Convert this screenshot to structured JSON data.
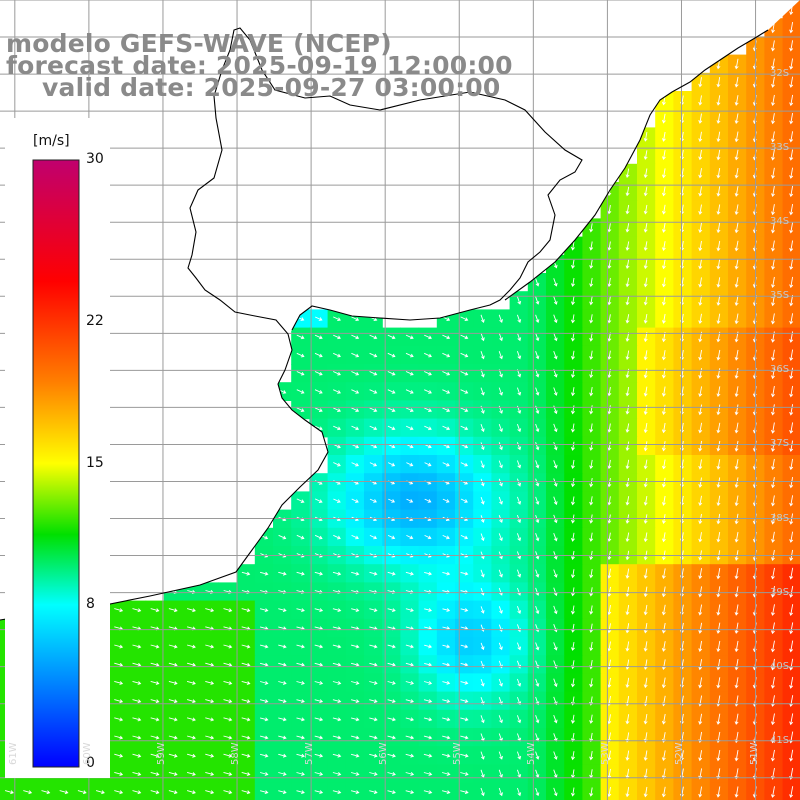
{
  "title": {
    "line1": "modelo GEFS-WAVE (NCEP)",
    "line2": "forecast date: 2025-09-19 12:00:00",
    "line3": "valid date: 2025-09-27 03:00:00"
  },
  "colorbar": {
    "unit": "[m/s]",
    "ticks": [
      "30",
      "22",
      "15",
      "8",
      "0"
    ],
    "tick_values": [
      30,
      22,
      15,
      8,
      0
    ],
    "range": [
      0,
      30
    ],
    "colors": [
      "#0000ff",
      "#00ffff",
      "#00e000",
      "#ffff00",
      "#ff8000",
      "#ff0000",
      "#c0006e"
    ]
  },
  "axes": {
    "lat_labels": [
      "32S",
      "33S",
      "34S",
      "35S",
      "36S",
      "37S",
      "38S",
      "39S",
      "40S",
      "41S"
    ],
    "lat_values": [
      -32,
      -33,
      -34,
      -35,
      -36,
      -37,
      -38,
      -39,
      -40,
      -41
    ],
    "lon_labels": [
      "61W",
      "60W",
      "59W",
      "58W",
      "57W",
      "56W",
      "55W",
      "54W",
      "53W",
      "52W",
      "51W"
    ],
    "lon_values": [
      -61,
      -60,
      -59,
      -58,
      -57,
      -56,
      -55,
      -54,
      -53,
      -52,
      -51
    ],
    "lat_range": [
      -41.8,
      -31.0
    ],
    "lon_range": [
      -61.2,
      -50.4
    ]
  },
  "colors": {
    "land": "#ffffff",
    "coastline": "#000000",
    "grid": "#9a9a9a",
    "arrow": "#ffffff",
    "title": "#8a8a8a"
  }
}
